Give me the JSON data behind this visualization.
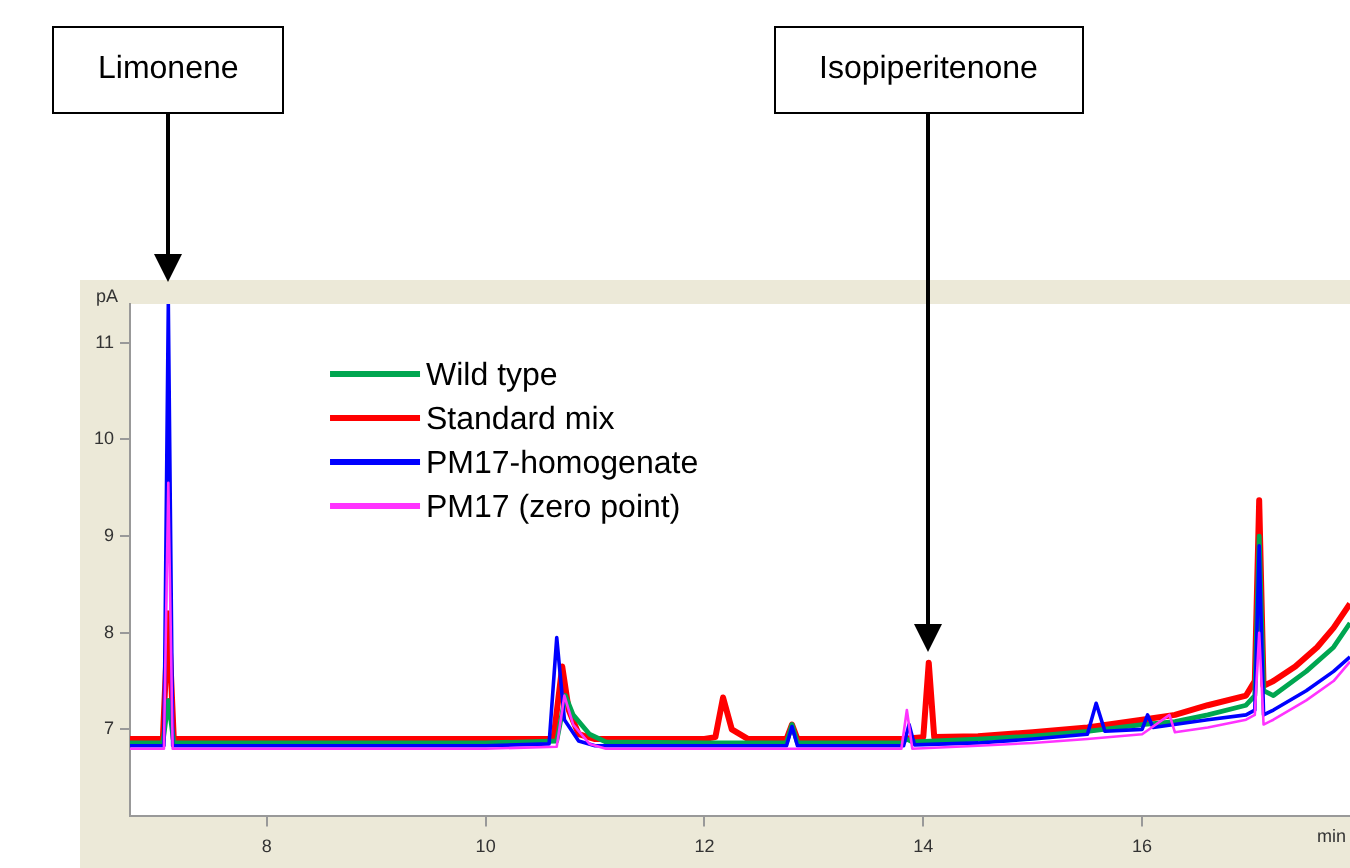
{
  "chart_data": {
    "type": "line",
    "xlabel": "min",
    "ylabel": "pA",
    "xlim": [
      6.75,
      17.9
    ],
    "ylim": [
      6.1,
      11.4
    ],
    "xticks": [
      8,
      10,
      12,
      14,
      16
    ],
    "yticks": [
      7,
      8,
      9,
      10,
      11
    ],
    "grid": false,
    "legend": "top left",
    "annotations": [
      "Limonene",
      "Isopiperitenone"
    ],
    "series": [
      {
        "name": "Wild type",
        "color": "#00a650",
        "x": [
          6.75,
          7.05,
          7.1,
          7.15,
          8,
          9,
          10,
          10.65,
          10.73,
          10.8,
          10.95,
          11.1,
          12,
          12.75,
          12.8,
          12.85,
          13.8,
          13.85,
          13.9,
          14.5,
          15,
          15.5,
          16,
          16.3,
          16.6,
          16.95,
          17.03,
          17.07,
          17.11,
          17.2,
          17.5,
          17.75,
          17.9
        ],
        "values": [
          6.86,
          6.86,
          7.3,
          6.86,
          6.86,
          6.86,
          6.86,
          6.88,
          7.35,
          7.15,
          6.95,
          6.87,
          6.86,
          6.86,
          7.05,
          6.86,
          6.86,
          6.9,
          6.87,
          6.9,
          6.93,
          6.98,
          7.05,
          7.08,
          7.15,
          7.25,
          7.35,
          9.0,
          7.4,
          7.35,
          7.6,
          7.85,
          8.1
        ]
      },
      {
        "name": "Standard mix",
        "color": "#ff0000",
        "x": [
          6.75,
          7.05,
          7.1,
          7.15,
          8,
          9,
          10,
          10.62,
          10.7,
          10.76,
          10.85,
          11,
          12,
          12.1,
          12.17,
          12.25,
          12.4,
          12.75,
          12.8,
          12.85,
          13.8,
          14.0,
          14.05,
          14.1,
          14.5,
          15,
          15.5,
          16,
          16.3,
          16.6,
          16.95,
          17.03,
          17.07,
          17.11,
          17.2,
          17.4,
          17.6,
          17.75,
          17.9
        ],
        "values": [
          6.9,
          6.9,
          8.2,
          6.9,
          6.9,
          6.9,
          6.9,
          6.9,
          7.65,
          7.2,
          6.95,
          6.9,
          6.9,
          6.92,
          7.33,
          7.0,
          6.9,
          6.9,
          7.05,
          6.9,
          6.9,
          6.92,
          7.69,
          6.92,
          6.93,
          6.97,
          7.02,
          7.1,
          7.15,
          7.25,
          7.35,
          7.5,
          9.37,
          7.45,
          7.5,
          7.65,
          7.85,
          8.05,
          8.3
        ]
      },
      {
        "name": "PM17-homogenate",
        "color": "#0000ff",
        "x": [
          6.75,
          7.06,
          7.1,
          7.14,
          8,
          9,
          10,
          10.58,
          10.65,
          10.72,
          10.85,
          11,
          12,
          12.75,
          12.8,
          12.85,
          13.82,
          13.87,
          13.92,
          14.5,
          15,
          15.5,
          15.58,
          15.66,
          16,
          16.05,
          16.1,
          16.6,
          16.95,
          17.03,
          17.07,
          17.11,
          17.2,
          17.5,
          17.75,
          17.9
        ],
        "values": [
          6.83,
          6.83,
          11.4,
          6.83,
          6.83,
          6.83,
          6.83,
          6.85,
          7.95,
          7.1,
          6.88,
          6.83,
          6.83,
          6.83,
          7.03,
          6.83,
          6.83,
          7.05,
          6.84,
          6.86,
          6.9,
          6.95,
          7.27,
          6.98,
          7.0,
          7.15,
          7.02,
          7.1,
          7.15,
          7.2,
          8.9,
          7.15,
          7.2,
          7.4,
          7.6,
          7.75
        ]
      },
      {
        "name": "PM17 (zero point)",
        "color": "#ff33ff",
        "x": [
          6.75,
          7.06,
          7.1,
          7.14,
          8,
          9,
          10,
          10.65,
          10.72,
          10.8,
          10.95,
          11.1,
          12,
          13.8,
          13.85,
          13.9,
          14.5,
          15,
          15.5,
          16,
          16.25,
          16.3,
          16.6,
          16.95,
          17.03,
          17.07,
          17.11,
          17.2,
          17.5,
          17.75,
          17.9
        ],
        "values": [
          6.8,
          6.8,
          9.55,
          6.8,
          6.8,
          6.8,
          6.8,
          6.82,
          7.35,
          7.05,
          6.85,
          6.8,
          6.8,
          6.8,
          7.2,
          6.8,
          6.83,
          6.86,
          6.9,
          6.95,
          7.15,
          6.97,
          7.02,
          7.1,
          7.15,
          8.0,
          7.05,
          7.1,
          7.3,
          7.5,
          7.7
        ]
      }
    ]
  }
}
